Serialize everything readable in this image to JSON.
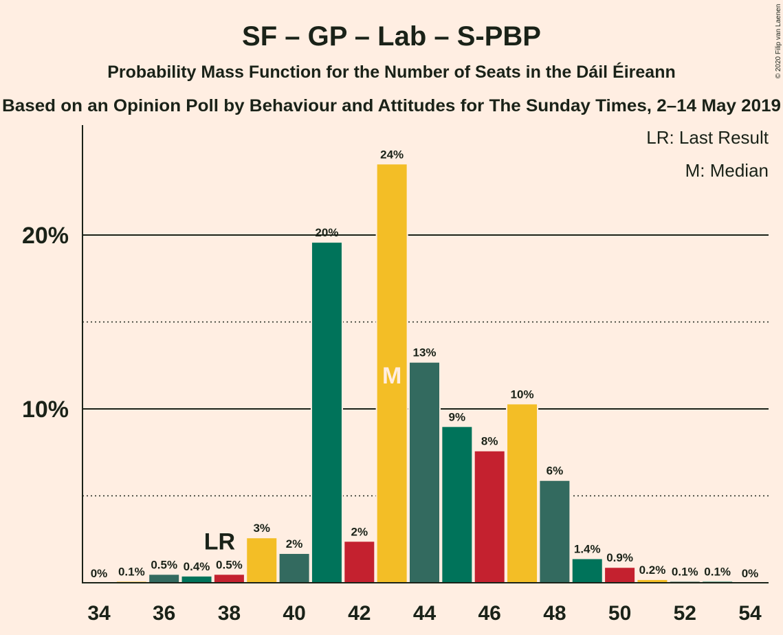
{
  "title": "SF – GP – Lab – S-PBP",
  "subtitle": "Probability Mass Function for the Number of Seats in the Dáil Éireann",
  "source_line": "Based on an Opinion Poll by Behaviour and Attitudes for The Sunday Times, 2–14 May 2019",
  "copyright": "© 2020 Filip van Laenen",
  "legend": {
    "last_result": "LR: Last Result",
    "median": "M: Median"
  },
  "markers": {
    "last_result_label": "LR",
    "last_result_seat": 38,
    "median_label": "M",
    "median_seat": 43
  },
  "colors": {
    "background": "#FFEEE2",
    "sf_green": "#00735A",
    "labour_red": "#C4212F",
    "gp_yellow": "#F3BE26",
    "pbp_grey_green": "#336A5F",
    "text": "#1a2218"
  },
  "chart_data": {
    "type": "bar",
    "xlabel": "",
    "ylabel": "",
    "ylim": [
      0,
      26
    ],
    "y_ticks": [
      {
        "value": 10,
        "label": "10%"
      },
      {
        "value": 20,
        "label": "20%"
      }
    ],
    "y_dotted_lines": [
      5,
      15
    ],
    "x_ticks": [
      34,
      36,
      38,
      40,
      42,
      44,
      46,
      48,
      50,
      52,
      54
    ],
    "bars": [
      {
        "seats": 34,
        "value": 0.0,
        "label": "0%",
        "color": "#00735A"
      },
      {
        "seats": 35,
        "value": 0.1,
        "label": "0.1%",
        "color": "#F3BE26"
      },
      {
        "seats": 36,
        "value": 0.5,
        "label": "0.5%",
        "color": "#336A5F"
      },
      {
        "seats": 37,
        "value": 0.4,
        "label": "0.4%",
        "color": "#00735A"
      },
      {
        "seats": 38,
        "value": 0.5,
        "label": "0.5%",
        "color": "#C4212F"
      },
      {
        "seats": 39,
        "value": 2.6,
        "label": "3%",
        "color": "#F3BE26"
      },
      {
        "seats": 40,
        "value": 1.7,
        "label": "2%",
        "color": "#336A5F"
      },
      {
        "seats": 41,
        "value": 19.6,
        "label": "20%",
        "color": "#00735A"
      },
      {
        "seats": 42,
        "value": 2.4,
        "label": "2%",
        "color": "#C4212F"
      },
      {
        "seats": 43,
        "value": 24.1,
        "label": "24%",
        "color": "#F3BE26"
      },
      {
        "seats": 44,
        "value": 12.7,
        "label": "13%",
        "color": "#336A5F"
      },
      {
        "seats": 45,
        "value": 9.0,
        "label": "9%",
        "color": "#00735A"
      },
      {
        "seats": 46,
        "value": 7.6,
        "label": "8%",
        "color": "#C4212F"
      },
      {
        "seats": 47,
        "value": 10.3,
        "label": "10%",
        "color": "#F3BE26"
      },
      {
        "seats": 48,
        "value": 5.9,
        "label": "6%",
        "color": "#336A5F"
      },
      {
        "seats": 49,
        "value": 1.4,
        "label": "1.4%",
        "color": "#00735A"
      },
      {
        "seats": 50,
        "value": 0.9,
        "label": "0.9%",
        "color": "#C4212F"
      },
      {
        "seats": 51,
        "value": 0.2,
        "label": "0.2%",
        "color": "#F3BE26"
      },
      {
        "seats": 52,
        "value": 0.1,
        "label": "0.1%",
        "color": "#336A5F"
      },
      {
        "seats": 53,
        "value": 0.1,
        "label": "0.1%",
        "color": "#00735A"
      },
      {
        "seats": 54,
        "value": 0.0,
        "label": "0%",
        "color": "#C4212F"
      }
    ]
  }
}
